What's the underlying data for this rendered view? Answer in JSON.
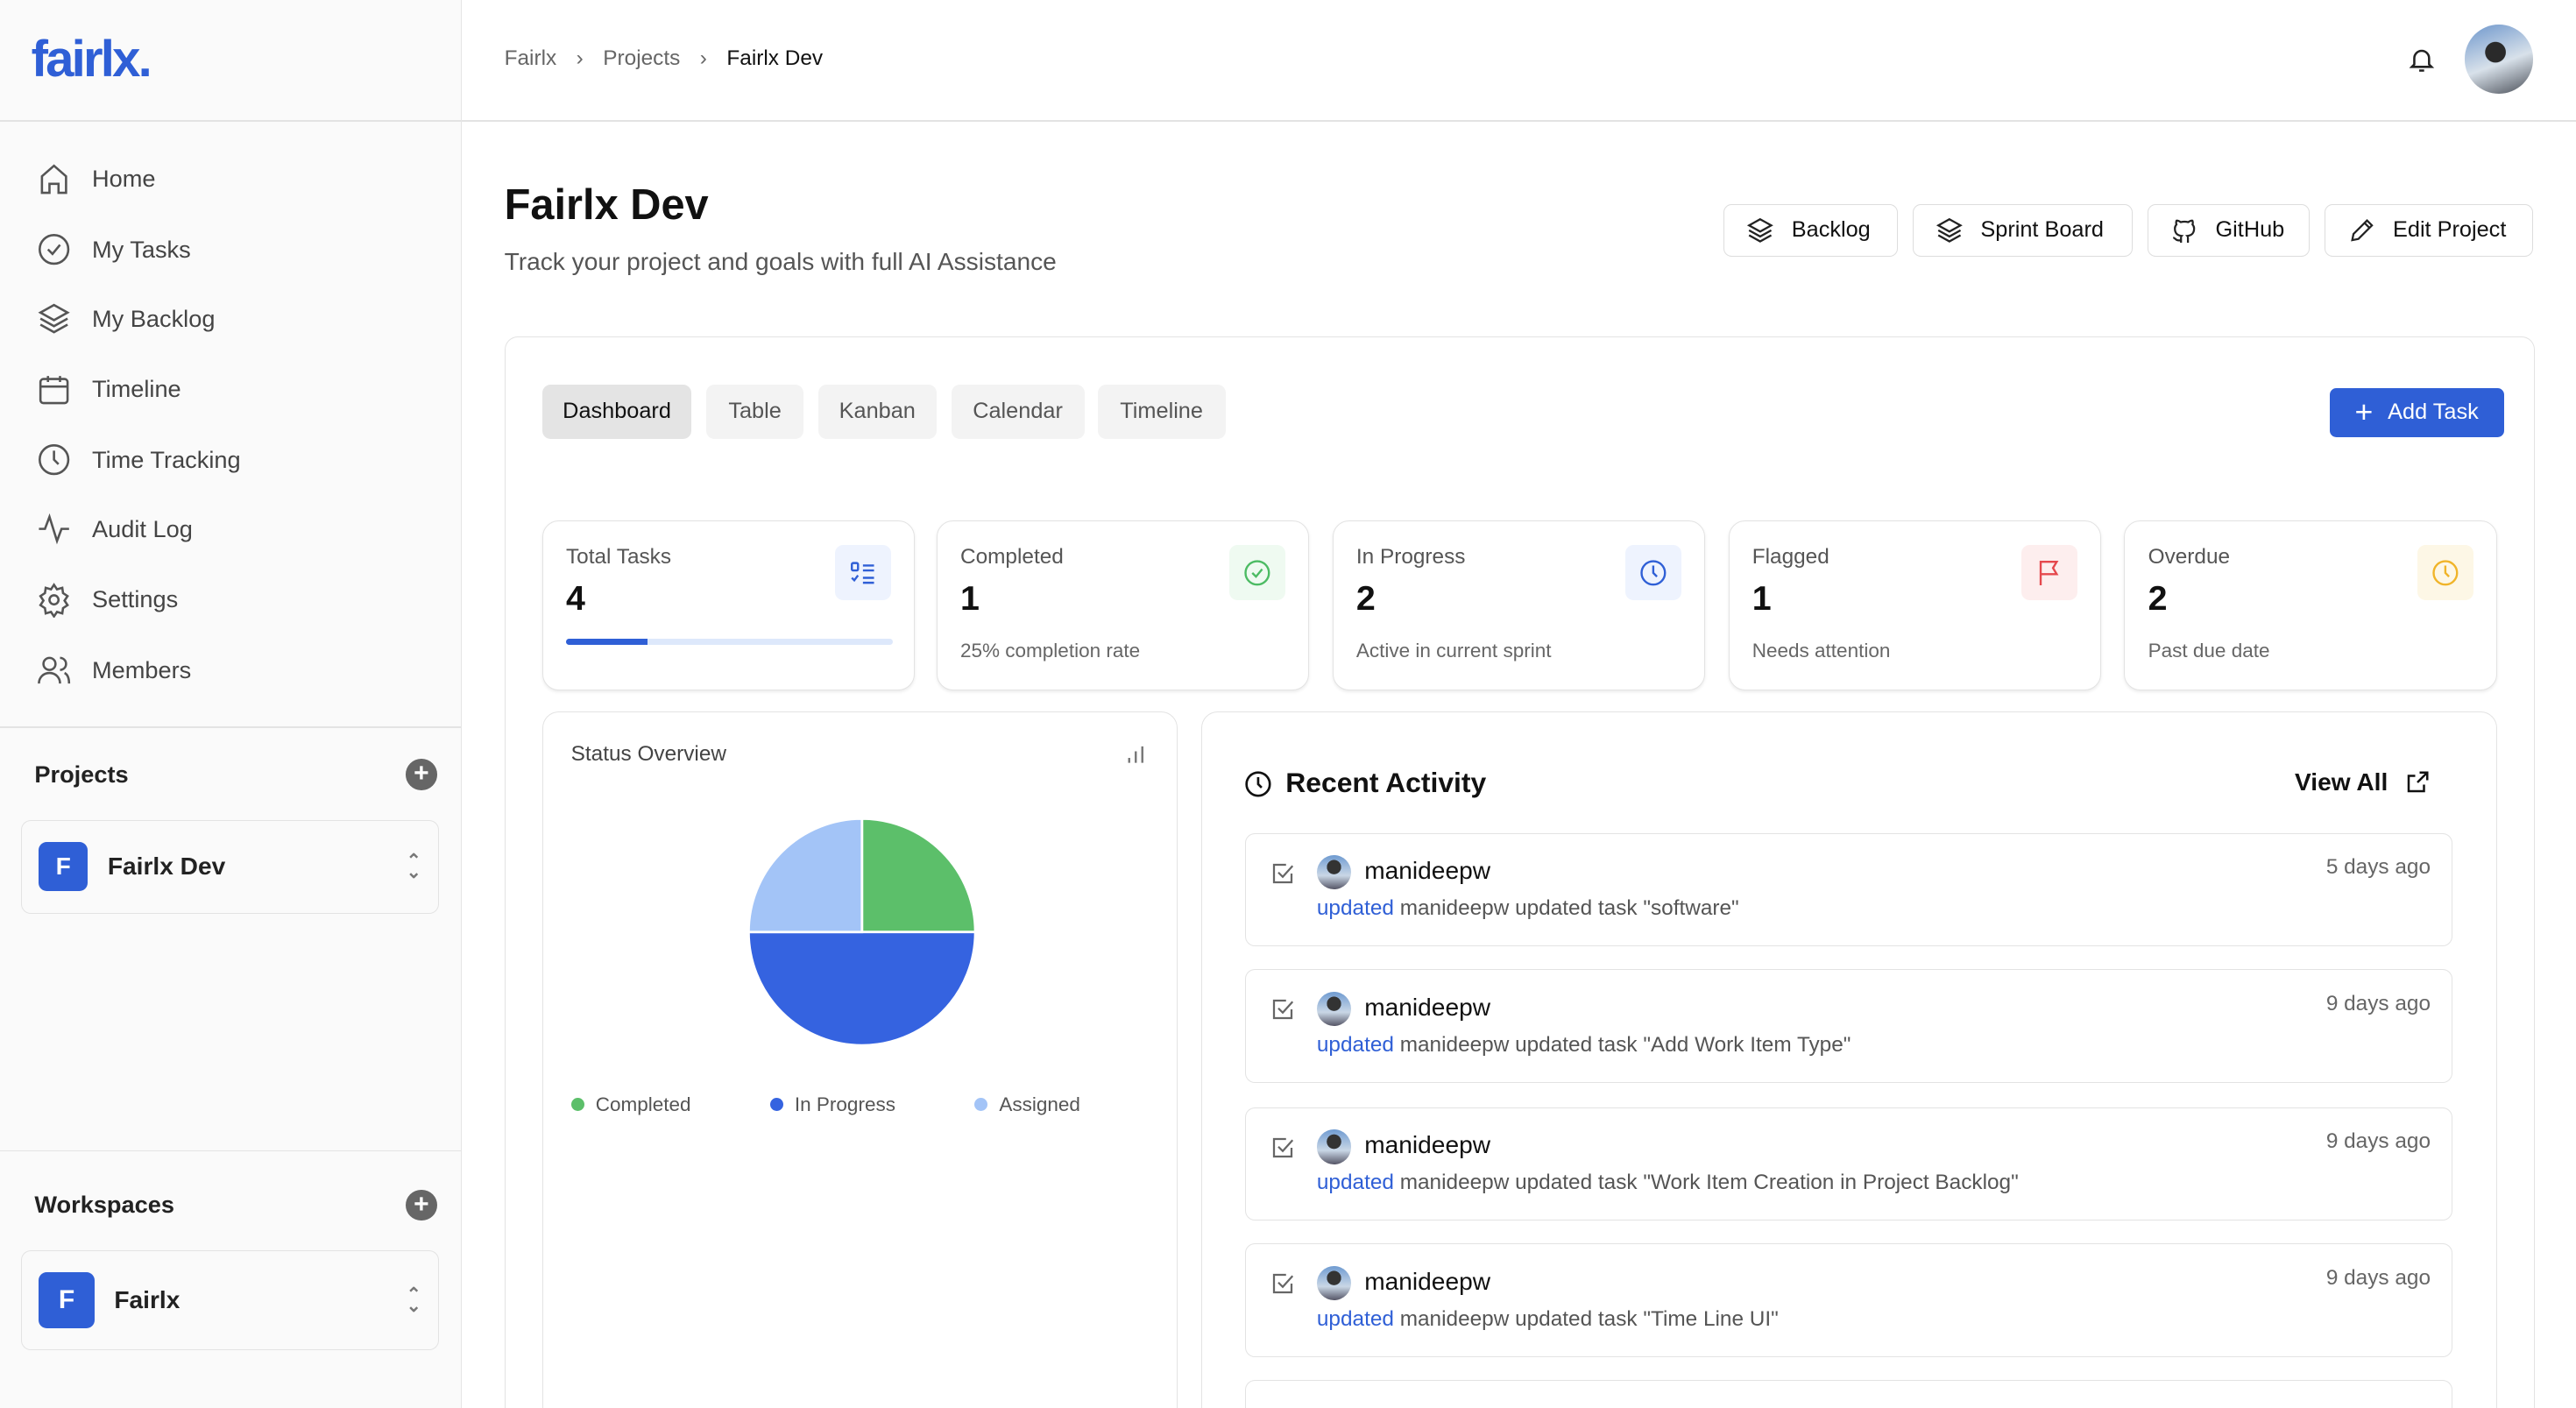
{
  "app": {
    "logo": "fairlx."
  },
  "sidebar": {
    "nav": [
      {
        "label": "Home",
        "icon": "home-icon"
      },
      {
        "label": "My Tasks",
        "icon": "check-circle-icon"
      },
      {
        "label": "My Backlog",
        "icon": "layers-icon"
      },
      {
        "label": "Timeline",
        "icon": "calendar-icon"
      },
      {
        "label": "Time Tracking",
        "icon": "clock-icon"
      },
      {
        "label": "Audit Log",
        "icon": "activity-icon"
      },
      {
        "label": "Settings",
        "icon": "gear-icon"
      },
      {
        "label": "Members",
        "icon": "users-icon"
      }
    ],
    "projects": {
      "title": "Projects",
      "selected": {
        "initial": "F",
        "name": "Fairlx Dev"
      }
    },
    "workspaces": {
      "title": "Workspaces",
      "selected": {
        "initial": "F",
        "name": "Fairlx"
      }
    }
  },
  "header": {
    "breadcrumb": [
      "Fairlx",
      "Projects",
      "Fairlx Dev"
    ]
  },
  "page": {
    "title": "Fairlx Dev",
    "subtitle": "Track your project and goals with full AI Assistance",
    "actions": [
      "Backlog",
      "Sprint Board",
      "GitHub",
      "Edit Project"
    ]
  },
  "tabs": [
    "Dashboard",
    "Table",
    "Kanban",
    "Calendar",
    "Timeline"
  ],
  "active_tab": "Dashboard",
  "add_task": "Add Task",
  "stats": [
    {
      "label": "Total Tasks",
      "value": "4",
      "progress_percent": 25,
      "icon": "list-check-icon",
      "color": "#2f5fd6"
    },
    {
      "label": "Completed",
      "value": "1",
      "sub": "25% completion rate",
      "icon": "check-circle-icon",
      "color": "#4cbb63"
    },
    {
      "label": "In Progress",
      "value": "2",
      "sub": "Active in current sprint",
      "icon": "clock-icon",
      "color": "#2f5fd6"
    },
    {
      "label": "Flagged",
      "value": "1",
      "sub": "Needs attention",
      "icon": "flag-icon",
      "color": "#e5484d"
    },
    {
      "label": "Overdue",
      "value": "2",
      "sub": "Past due date",
      "icon": "clock-icon",
      "color": "#f0b429"
    }
  ],
  "status_overview": {
    "title": "Status Overview"
  },
  "chart_data": {
    "type": "pie",
    "categories": [
      "Completed",
      "In Progress",
      "Assigned"
    ],
    "values": [
      1,
      2,
      1
    ],
    "colors": [
      "#5cbf6a",
      "#3563e0",
      "#a3c4f7"
    ],
    "legend": "bottom"
  },
  "activity": {
    "title": "Recent Activity",
    "view_all": "View All",
    "items": [
      {
        "user": "manideepw",
        "time": "5 days ago",
        "action": "updated",
        "text": "manideepw updated task \"software\""
      },
      {
        "user": "manideepw",
        "time": "9 days ago",
        "action": "updated",
        "text": "manideepw updated task \"Add Work Item Type\""
      },
      {
        "user": "manideepw",
        "time": "9 days ago",
        "action": "updated",
        "text": "manideepw updated task \"Work Item Creation in Project Backlog\""
      },
      {
        "user": "manideepw",
        "time": "9 days ago",
        "action": "updated",
        "text": "manideepw updated task \"Time Line UI\""
      }
    ]
  }
}
